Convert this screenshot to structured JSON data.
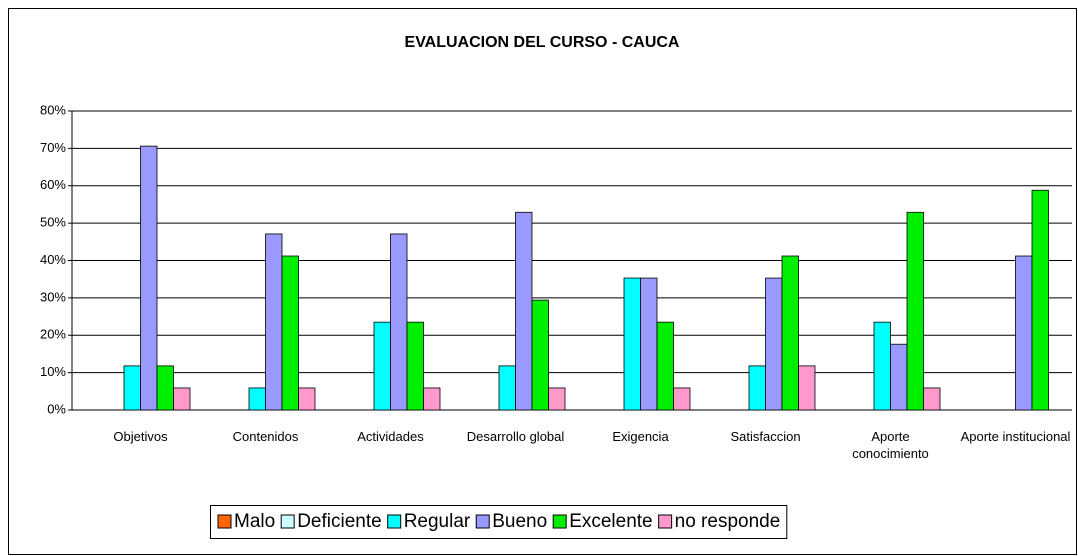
{
  "chart_data": {
    "type": "bar",
    "title": "EVALUACION DEL CURSO - CAUCA",
    "categories": [
      "Objetivos",
      "Contenidos",
      "Actividades",
      "Desarrollo global",
      "Exigencia",
      "Satisfaccion",
      "Aporte conocimiento",
      "Aporte institucional"
    ],
    "series": [
      {
        "name": "Malo",
        "color": "#ff6600",
        "values": [
          0,
          0,
          0,
          0,
          0,
          0,
          0,
          0
        ]
      },
      {
        "name": "Deficiente",
        "color": "#ccffff",
        "values": [
          0,
          0,
          0,
          0,
          0,
          0,
          0,
          0
        ]
      },
      {
        "name": "Regular",
        "color": "#00ffff",
        "values": [
          11.8,
          5.9,
          23.5,
          11.8,
          35.3,
          11.8,
          23.5,
          0
        ]
      },
      {
        "name": "Bueno",
        "color": "#9999ff",
        "values": [
          70.6,
          47.1,
          47.1,
          52.9,
          35.3,
          35.3,
          17.6,
          41.2
        ]
      },
      {
        "name": "Excelente",
        "color": "#00ee00",
        "values": [
          11.8,
          41.2,
          23.5,
          29.4,
          23.5,
          41.2,
          52.9,
          58.8
        ]
      },
      {
        "name": "no responde",
        "color": "#ff99cc",
        "values": [
          5.9,
          5.9,
          5.9,
          5.9,
          5.9,
          11.8,
          5.9,
          0
        ]
      }
    ],
    "ylim": [
      0,
      80
    ],
    "yticks": [
      {
        "value": 0,
        "label": "0%"
      },
      {
        "value": 10,
        "label": "10%"
      },
      {
        "value": 20,
        "label": "20%"
      },
      {
        "value": 30,
        "label": "30%"
      },
      {
        "value": 40,
        "label": "40%"
      },
      {
        "value": 50,
        "label": "50%"
      },
      {
        "value": 60,
        "label": "60%"
      },
      {
        "value": 70,
        "label": "70%"
      },
      {
        "value": 80,
        "label": "80%"
      }
    ],
    "grid": true,
    "legend": "bottom"
  }
}
